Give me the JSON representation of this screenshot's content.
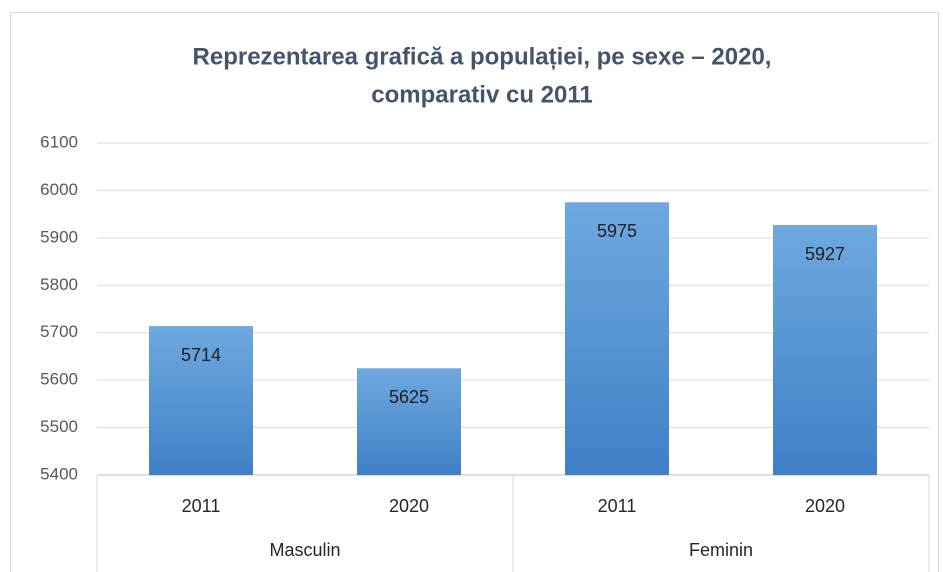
{
  "chart_data": {
    "type": "bar",
    "title": [
      "Reprezentarea grafică a populației, pe sexe – 2020,",
      "comparativ cu 2011"
    ],
    "categories": [
      "2011",
      "2020",
      "2011",
      "2020"
    ],
    "groups": [
      "Masculin",
      "Feminin"
    ],
    "values": [
      5714,
      5625,
      5975,
      5927
    ],
    "color": "#5b9bd5",
    "ylim": [
      5400,
      6100
    ],
    "yticks": [
      5400,
      5500,
      5600,
      5700,
      5800,
      5900,
      6000,
      6100
    ],
    "grid": true,
    "data_labels": true
  }
}
